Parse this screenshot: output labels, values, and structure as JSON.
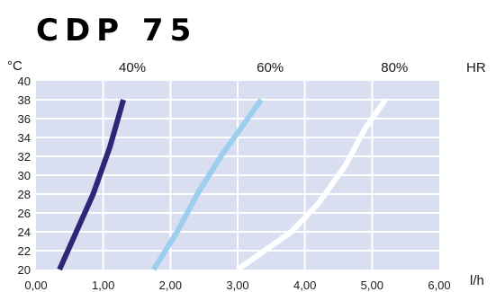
{
  "title": "CDP 75",
  "chart_data": {
    "type": "line",
    "title": "CDP 75",
    "ylabel": "°C",
    "xlabel": "l/h",
    "series_legend_label": "HR",
    "xlim": [
      0,
      6
    ],
    "ylim": [
      20,
      40
    ],
    "x_ticks": [
      "0,00",
      "1,00",
      "2,00",
      "3,00",
      "4,00",
      "5,00",
      "6,00"
    ],
    "y_ticks": [
      "20",
      "22",
      "24",
      "26",
      "28",
      "30",
      "32",
      "34",
      "36",
      "38",
      "40"
    ],
    "grid": true,
    "background_color": "#d9dff0",
    "series": [
      {
        "name": "40%",
        "color": "#2e2676",
        "points": [
          [
            0.35,
            20
          ],
          [
            0.6,
            24
          ],
          [
            0.85,
            28
          ],
          [
            1.1,
            33
          ],
          [
            1.3,
            38
          ]
        ]
      },
      {
        "name": "60%",
        "color": "#9ccfee",
        "points": [
          [
            1.75,
            20
          ],
          [
            2.1,
            24
          ],
          [
            2.4,
            28
          ],
          [
            2.75,
            32
          ],
          [
            3.05,
            35
          ],
          [
            3.35,
            38
          ]
        ]
      },
      {
        "name": "80%",
        "color": "#ffffff",
        "points": [
          [
            3.0,
            20
          ],
          [
            3.4,
            22
          ],
          [
            3.8,
            24
          ],
          [
            4.2,
            27
          ],
          [
            4.6,
            31
          ],
          [
            4.9,
            35
          ],
          [
            5.2,
            38
          ]
        ]
      }
    ]
  }
}
